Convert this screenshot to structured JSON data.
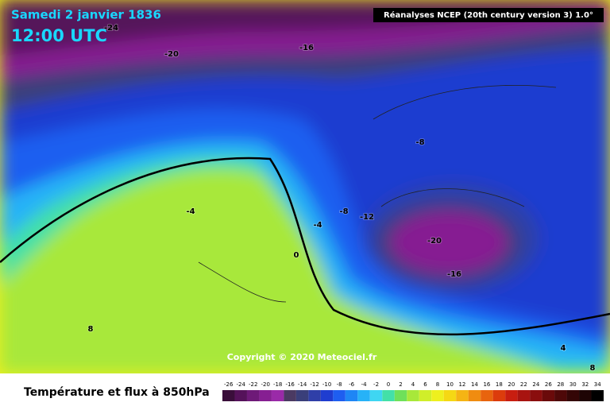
{
  "header": {
    "date": "Samedi 2 janvier 1836",
    "time": "12:00 UTC",
    "source": "Réanalyses NCEP (20th century version 3) 1.0°"
  },
  "copyright": "Copyright © 2020 Meteociel.fr",
  "footer": {
    "title": "Température et flux à 850hPa"
  },
  "contour_labels": [
    -24,
    -20,
    -16,
    -8,
    -8,
    -12,
    -4,
    -4,
    0,
    -20,
    -16,
    8,
    4,
    8
  ],
  "colorbar": {
    "ticks": [
      -26,
      -24,
      -22,
      -20,
      -18,
      -16,
      -14,
      -12,
      -10,
      -8,
      -6,
      -4,
      -2,
      0,
      2,
      4,
      6,
      8,
      10,
      12,
      14,
      16,
      18,
      20,
      22,
      24,
      26,
      28,
      30,
      32,
      34
    ],
    "colors": [
      "#3a0e3a",
      "#55125a",
      "#6e1a78",
      "#861f92",
      "#9a2aa8",
      "#4b3a62",
      "#3a3f7a",
      "#2f3fa8",
      "#1f3dd0",
      "#1e5ef0",
      "#1e86f5",
      "#27b2f7",
      "#3fd6f2",
      "#43e0a8",
      "#6fe05a",
      "#a8e83a",
      "#d0ee2a",
      "#eef01e",
      "#f5d814",
      "#f5b414",
      "#f08c10",
      "#e8640e",
      "#dc3c0c",
      "#c81e10",
      "#a81410",
      "#8a0e0e",
      "#6a0a0a",
      "#4e0808",
      "#340606",
      "#1e0404",
      "#000000"
    ]
  }
}
